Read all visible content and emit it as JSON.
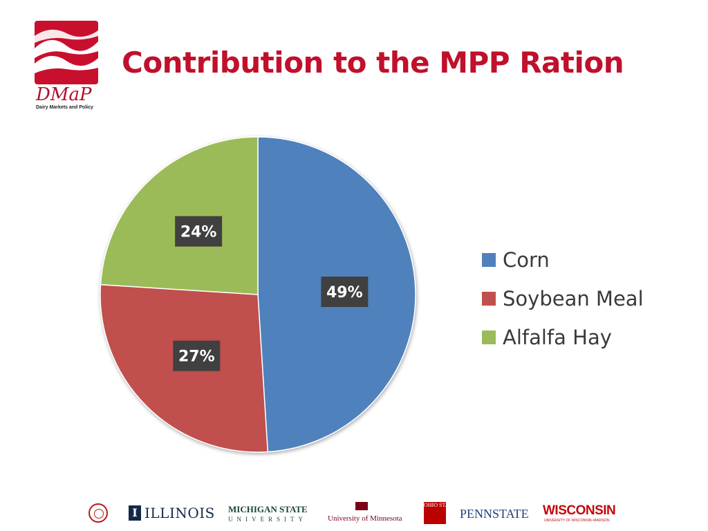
{
  "header": {
    "title": "Contribution to the MPP Ration",
    "logo": {
      "wordmark": "DMaP",
      "tagline": "Dairy Markets and Policy",
      "color": "#c8102e"
    }
  },
  "chart_data": {
    "type": "pie",
    "title": "",
    "categories": [
      "Corn",
      "Soybean Meal",
      "Alfalfa Hay"
    ],
    "values": [
      49,
      27,
      24
    ],
    "labels": [
      "49%",
      "27%",
      "24%"
    ],
    "colors": [
      "#4f81bd",
      "#c0504d",
      "#9bbb59"
    ],
    "legend_position": "right",
    "start_angle": "12 o'clock, clockwise"
  },
  "footer": {
    "universities": [
      "Cornell University",
      "ILLINOIS",
      "MICHIGAN STATE",
      "UNIVERSITY",
      "University of Minnesota",
      "OHIO STATE",
      "PENNSTATE",
      "WISCONSIN",
      "UNIVERSITY OF WISCONSIN–MADISON"
    ]
  }
}
